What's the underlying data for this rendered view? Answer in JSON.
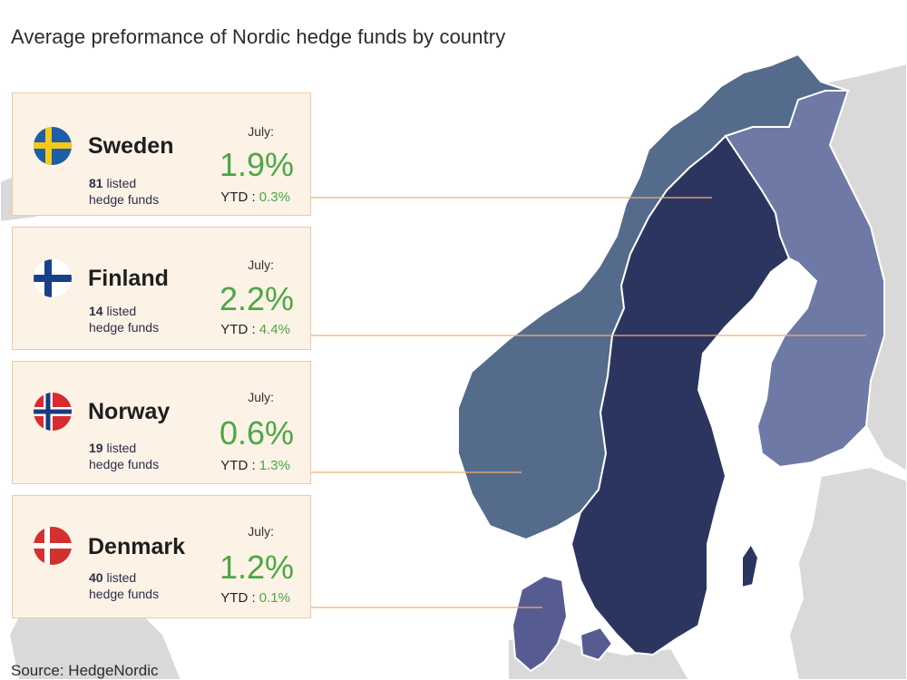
{
  "title": "Average preformance of Nordic hedge funds by country",
  "source": "Source: HedgeNordic",
  "colors": {
    "sweden": "#2c3560",
    "norway": "#556b8c",
    "finland": "#6e7aa5",
    "denmark": "#565c91",
    "other_land": "#d9d9d9",
    "card_bg": "#fdf2e6",
    "card_border": "#f0c9a0",
    "positive": "#4aa844",
    "leader_line": "#f0b070"
  },
  "countries": [
    {
      "name": "Sweden",
      "flag": "sweden-flag-icon",
      "funds_count": "81",
      "funds_label": "listed",
      "funds_label2": "hedge funds",
      "month_label": "July:",
      "july": "1.9%",
      "ytd_label": "YTD :",
      "ytd": "0.3%"
    },
    {
      "name": "Finland",
      "flag": "finland-flag-icon",
      "funds_count": "14",
      "funds_label": "listed",
      "funds_label2": "hedge funds",
      "month_label": "July:",
      "july": "2.2%",
      "ytd_label": "YTD :",
      "ytd": "4.4%"
    },
    {
      "name": "Norway",
      "flag": "norway-flag-icon",
      "funds_count": "19",
      "funds_label": "listed",
      "funds_label2": "hedge funds",
      "month_label": "July:",
      "july": "0.6%",
      "ytd_label": "YTD :",
      "ytd": "1.3%"
    },
    {
      "name": "Denmark",
      "flag": "denmark-flag-icon",
      "funds_count": "40",
      "funds_label": "listed",
      "funds_label2": "hedge funds",
      "month_label": "July:",
      "july": "1.2%",
      "ytd_label": "YTD :",
      "ytd": "0.1%"
    }
  ]
}
